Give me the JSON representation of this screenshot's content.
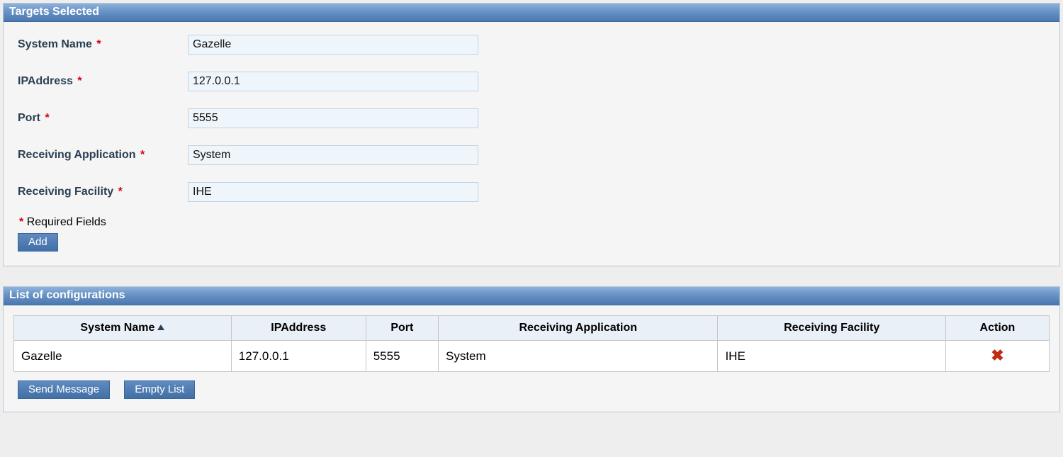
{
  "palette": {
    "panel_header_gradient": [
      "#8fb2db",
      "#6a95c7",
      "#4a78af"
    ],
    "panel_border": "#b8c6d6",
    "panel_bg": "#f5f5f5",
    "page_bg": "#eeeeee",
    "label_color": "#2a3f52",
    "required_color": "#d4000f",
    "input_bg": "#eef5fb",
    "input_border": "#c3d3e2",
    "btn_gradient": [
      "#5f8bc0",
      "#426fa6"
    ],
    "btn_border": "#3a6699",
    "th_bg": "#e9f0f7",
    "cell_border": "#c6c6c6",
    "delete_icon_color": "#c22a12"
  },
  "targets_panel": {
    "title": "Targets Selected",
    "fields": {
      "system_name": {
        "label": "System Name",
        "value": "Gazelle",
        "required": true
      },
      "ip_address": {
        "label": "IPAddress",
        "value": "127.0.0.1",
        "required": true
      },
      "port": {
        "label": "Port",
        "value": "5555",
        "required": true
      },
      "recv_app": {
        "label": "Receiving Application",
        "value": "System",
        "required": true
      },
      "recv_fac": {
        "label": "Receiving Facility",
        "value": "IHE",
        "required": true
      }
    },
    "required_note": "Required Fields",
    "required_asterisk": "*",
    "add_button": "Add"
  },
  "config_panel": {
    "title": "List of configurations",
    "columns": [
      {
        "key": "system_name",
        "label": "System Name",
        "sorted_asc": true
      },
      {
        "key": "ip_address",
        "label": "IPAddress"
      },
      {
        "key": "port",
        "label": "Port"
      },
      {
        "key": "recv_app",
        "label": "Receiving Application"
      },
      {
        "key": "recv_fac",
        "label": "Receiving Facility"
      },
      {
        "key": "action",
        "label": "Action"
      }
    ],
    "column_widths_pct": [
      21,
      13,
      7,
      27,
      22,
      10
    ],
    "rows": [
      {
        "system_name": "Gazelle",
        "ip_address": "127.0.0.1",
        "port": "5555",
        "recv_app": "System",
        "recv_fac": "IHE"
      }
    ],
    "send_button": "Send Message",
    "empty_button": "Empty List",
    "delete_icon_glyph": "✖"
  }
}
